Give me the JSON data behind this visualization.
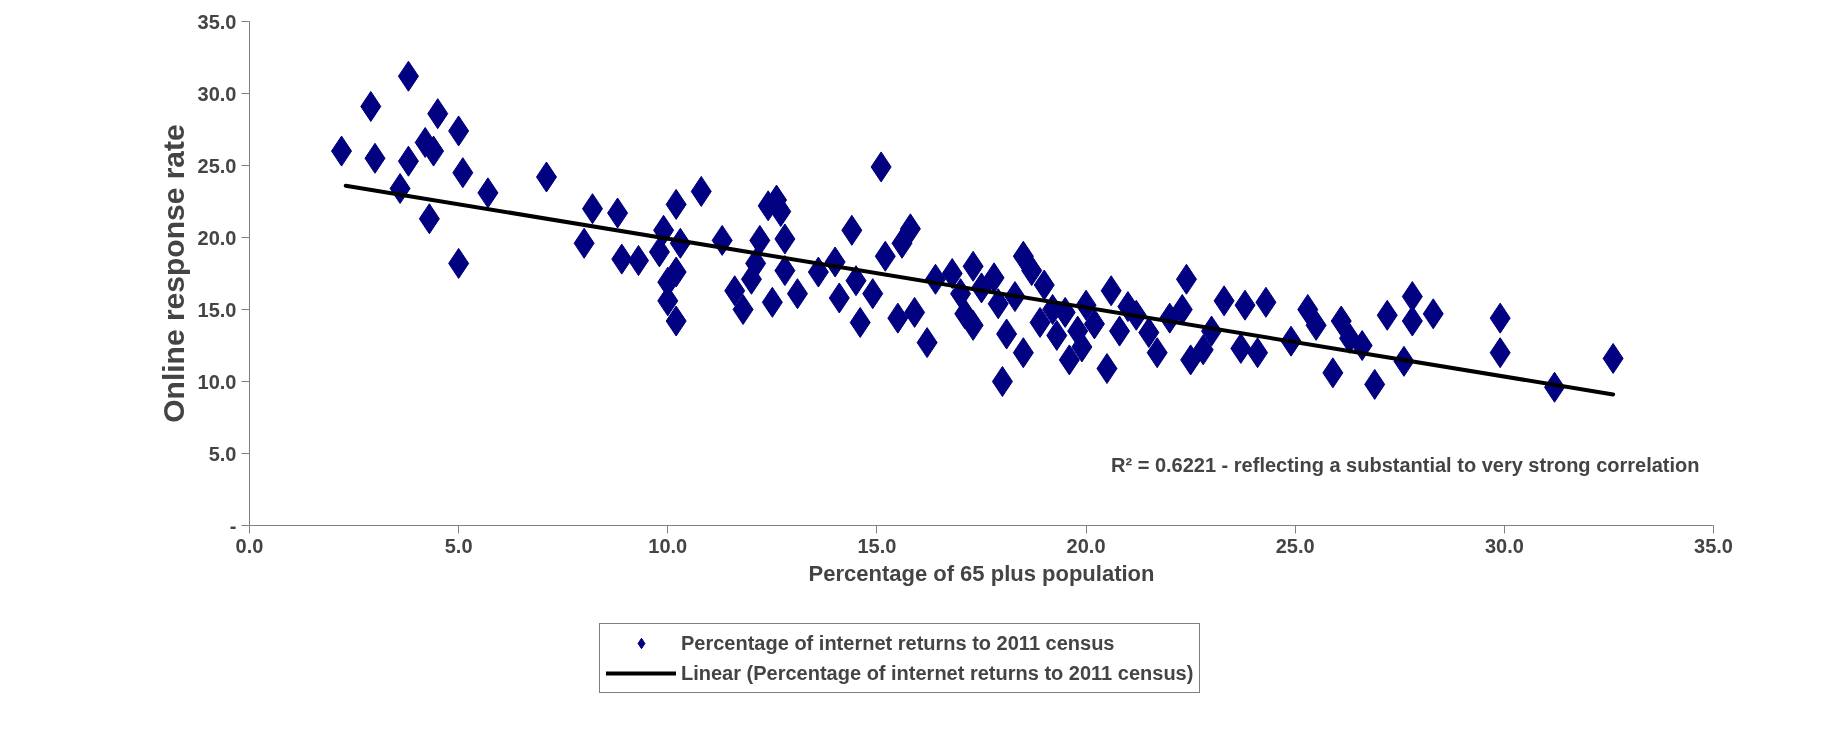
{
  "chart_data": {
    "type": "scatter",
    "xlabel": "Percentage of 65 plus population",
    "ylabel": "Online response rate",
    "xlim": [
      0,
      35
    ],
    "ylim": [
      0,
      35
    ],
    "xticks": [
      {
        "value": 0,
        "label": "0.0"
      },
      {
        "value": 5,
        "label": "5.0"
      },
      {
        "value": 10,
        "label": "10.0"
      },
      {
        "value": 15,
        "label": "15.0"
      },
      {
        "value": 20,
        "label": "20.0"
      },
      {
        "value": 25,
        "label": "25.0"
      },
      {
        "value": 30,
        "label": "30.0"
      },
      {
        "value": 35,
        "label": "35.0"
      }
    ],
    "yticks": [
      {
        "value": 0,
        "label": "-"
      },
      {
        "value": 5,
        "label": "5.0"
      },
      {
        "value": 10,
        "label": "10.0"
      },
      {
        "value": 15,
        "label": "15.0"
      },
      {
        "value": 20,
        "label": "20.0"
      },
      {
        "value": 25,
        "label": "25.0"
      },
      {
        "value": 30,
        "label": "30.0"
      },
      {
        "value": 35,
        "label": "35.0"
      }
    ],
    "grid": false,
    "legend": "bottom",
    "annotations": [
      "R² = 0.6221 - reflecting a substantial to very strong correlation"
    ],
    "series": [
      {
        "name": "Percentage of internet returns to 2011 census",
        "marker": "diamond",
        "color": "#000080",
        "x": [
          2.2,
          3.0,
          2.9,
          3.8,
          3.6,
          3.8,
          4.2,
          4.4,
          4.5,
          4.3,
          5.0,
          5.1,
          5.0,
          5.7,
          7.1,
          8.0,
          8.2,
          8.8,
          8.9,
          9.3,
          9.8,
          9.9,
          10.0,
          10.0,
          10.2,
          10.2,
          10.3,
          10.2,
          10.8,
          11.3,
          11.6,
          11.8,
          12.0,
          12.1,
          12.2,
          12.4,
          12.6,
          12.7,
          12.5,
          12.8,
          12.8,
          13.1,
          13.6,
          14.0,
          14.1,
          14.4,
          14.5,
          14.6,
          14.9,
          15.1,
          15.2,
          15.5,
          15.6,
          15.8,
          15.9,
          16.2,
          16.4,
          16.8,
          17.0,
          17.1,
          17.3,
          17.3,
          17.5,
          17.8,
          17.9,
          18.1,
          18.0,
          18.3,
          18.5,
          18.5,
          18.7,
          18.9,
          19.0,
          19.2,
          19.3,
          19.5,
          19.6,
          19.8,
          19.9,
          20.0,
          20.2,
          20.6,
          20.5,
          20.8,
          21.0,
          21.2,
          21.5,
          21.7,
          22.0,
          22.3,
          22.4,
          22.5,
          22.8,
          23.0,
          23.3,
          23.7,
          23.8,
          24.1,
          24.3,
          24.9,
          25.3,
          25.5,
          25.9,
          26.1,
          26.3,
          26.6,
          26.9,
          27.2,
          27.6,
          27.8,
          27.8,
          28.3,
          29.9,
          29.9,
          31.2,
          32.6
        ],
        "values": [
          26.0,
          25.5,
          29.1,
          31.2,
          23.4,
          25.3,
          26.6,
          26.0,
          28.6,
          21.3,
          27.4,
          24.5,
          18.2,
          23.1,
          24.2,
          19.6,
          22.0,
          21.7,
          18.5,
          18.4,
          19.0,
          20.5,
          16.9,
          15.6,
          17.6,
          22.3,
          19.6,
          14.2,
          23.2,
          19.8,
          16.3,
          15.0,
          17.1,
          18.2,
          19.8,
          22.2,
          22.6,
          21.8,
          15.5,
          19.9,
          17.7,
          16.1,
          17.6,
          18.3,
          15.8,
          20.5,
          17.0,
          14.1,
          16.1,
          24.9,
          18.7,
          14.4,
          19.6,
          20.6,
          14.8,
          12.7,
          17.1,
          17.5,
          16.1,
          14.7,
          18.0,
          13.9,
          16.5,
          17.2,
          15.4,
          13.3,
          10.0,
          15.9,
          18.7,
          12.0,
          17.7,
          14.1,
          16.7,
          15.0,
          13.2,
          14.8,
          11.5,
          13.5,
          12.4,
          15.3,
          14.0,
          16.3,
          10.9,
          13.5,
          15.2,
          14.6,
          13.4,
          12.0,
          14.4,
          15.0,
          17.1,
          11.5,
          12.2,
          13.5,
          15.6,
          12.3,
          15.3,
          12.0,
          15.5,
          12.8,
          15.0,
          13.9,
          10.6,
          14.2,
          13.0,
          12.5,
          9.8,
          14.6,
          11.4,
          15.9,
          14.2,
          14.7,
          14.4,
          12.0,
          9.6,
          11.6
        ]
      },
      {
        "name": "Linear (Percentage of internet returns to 2011 census)",
        "type": "line",
        "color": "#000000",
        "x": [
          2.3,
          32.6
        ],
        "values": [
          23.6,
          9.1
        ]
      }
    ]
  }
}
